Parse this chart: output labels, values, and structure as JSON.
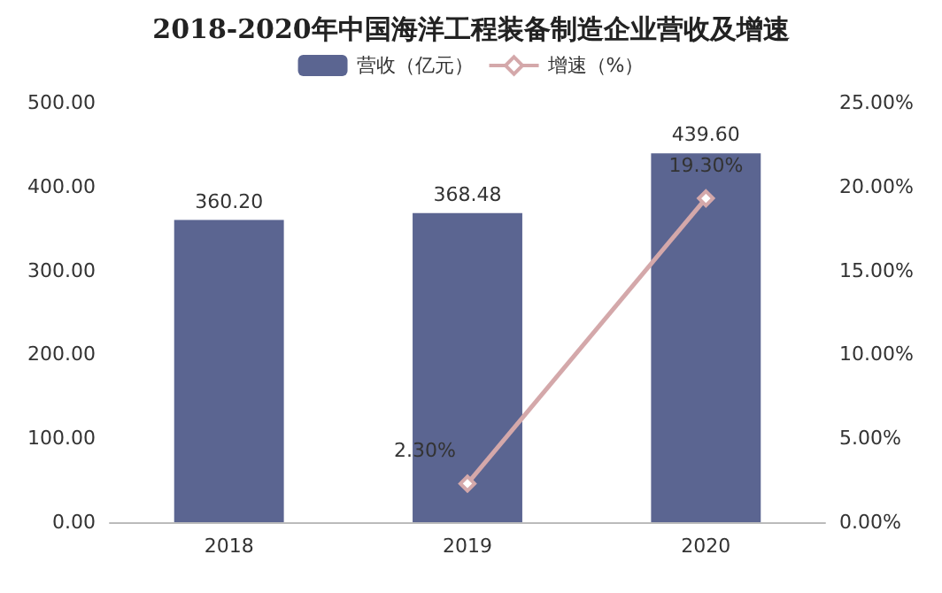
{
  "chart_data": {
    "type": "bar",
    "title": "2018-2020年中国海洋工程装备制造企业营收及增速",
    "categories": [
      "2018",
      "2019",
      "2020"
    ],
    "series": [
      {
        "name": "营收（亿元）",
        "color": "#5b6591",
        "values": [
          360.2,
          368.48,
          439.6
        ],
        "value_labels": [
          "360.20",
          "368.48",
          "439.60"
        ]
      },
      {
        "name": "增速（%）",
        "type": "line",
        "axis": "y2",
        "color": "#d4a8aa",
        "marker": "diamond",
        "values": [
          null,
          2.3,
          19.3
        ],
        "value_labels": [
          null,
          "2.30%",
          "19.30%"
        ]
      }
    ],
    "ylim": [
      0,
      500
    ],
    "yticks": [
      {
        "value": 0,
        "label": "0.00"
      },
      {
        "value": 100,
        "label": "100.00"
      },
      {
        "value": 200,
        "label": "200.00"
      },
      {
        "value": 300,
        "label": "300.00"
      },
      {
        "value": 400,
        "label": "400.00"
      },
      {
        "value": 500,
        "label": "500.00"
      }
    ],
    "y2lim": [
      0,
      25
    ],
    "y2ticks": [
      {
        "value": 0,
        "label": "0.00%"
      },
      {
        "value": 5,
        "label": "5.00%"
      },
      {
        "value": 10,
        "label": "10.00%"
      },
      {
        "value": 15,
        "label": "15.00%"
      },
      {
        "value": 20,
        "label": "20.00%"
      },
      {
        "value": 25,
        "label": "25.00%"
      }
    ],
    "legend": "top"
  }
}
